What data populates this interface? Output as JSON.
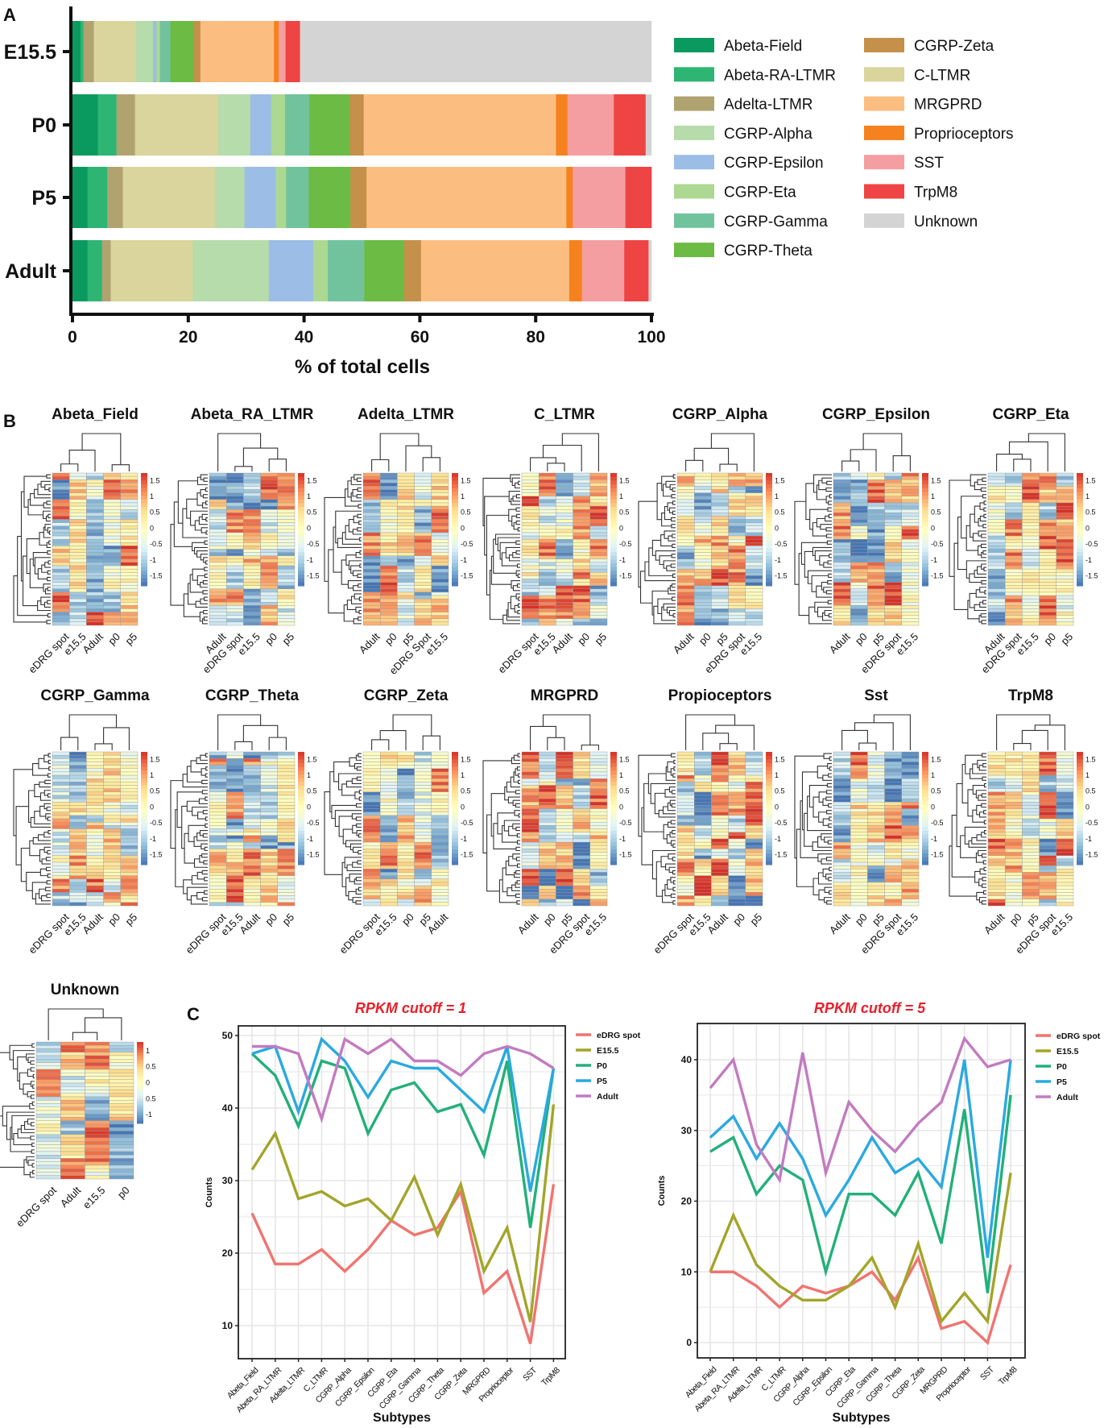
{
  "panel_labels": {
    "a": "A",
    "b": "B",
    "c": "C"
  },
  "panel_a": {
    "chart_data": {
      "type": "bar",
      "orientation": "horizontal-stacked",
      "xlabel": "% of total cells",
      "xlim": [
        0,
        100
      ],
      "xticks": [
        "0",
        "20",
        "40",
        "60",
        "80",
        "100"
      ],
      "categories": [
        "E15.5",
        "P0",
        "P5",
        "Adult"
      ],
      "stack_order": [
        "Abeta-Field",
        "Abeta-RA-LTMR",
        "Adelta-LTMR",
        "C-LTMR",
        "CGRP-Alpha",
        "CGRP-Epsilon",
        "CGRP-Eta",
        "CGRP-Gamma",
        "CGRP-Theta",
        "CGRP-Zeta",
        "MRGPRD",
        "Proprioceptors",
        "SST",
        "TrpM8",
        "Unknown"
      ],
      "series": [
        {
          "name": "Abeta-Field",
          "color": "#0a9a60",
          "values": [
            1.4,
            4.4,
            2.6,
            2.6
          ]
        },
        {
          "name": "Abeta-RA-LTMR",
          "color": "#2eb574",
          "values": [
            0.5,
            3.2,
            3.4,
            2.5
          ]
        },
        {
          "name": "Adelta-LTMR",
          "color": "#b0a370",
          "values": [
            1.8,
            3.2,
            2.7,
            1.5
          ]
        },
        {
          "name": "CGRP-Alpha",
          "color": "#b5dcaa",
          "values": [
            2.9,
            5.5,
            5.1,
            13.1
          ]
        },
        {
          "name": "CGRP-Epsilon",
          "color": "#9bbde6",
          "values": [
            0.6,
            3.6,
            5.4,
            7.7
          ]
        },
        {
          "name": "CGRP-Eta",
          "color": "#acd891",
          "values": [
            0.6,
            2.4,
            1.8,
            2.5
          ]
        },
        {
          "name": "CGRP-Gamma",
          "color": "#71c39e",
          "values": [
            1.8,
            4.2,
            3.9,
            6.3
          ]
        },
        {
          "name": "CGRP-Theta",
          "color": "#6cbb44",
          "values": [
            4.1,
            7.0,
            7.2,
            6.9
          ]
        },
        {
          "name": "CGRP-Zeta",
          "color": "#c4904a",
          "values": [
            1.1,
            2.4,
            2.8,
            2.9
          ]
        },
        {
          "name": "C-LTMR",
          "color": "#d9d59c",
          "values": [
            7.3,
            14.4,
            15.9,
            14.2
          ]
        },
        {
          "name": "MRGPRD",
          "color": "#fbbe80",
          "values": [
            12.7,
            33.2,
            34.5,
            25.6
          ]
        },
        {
          "name": "Proprioceptors",
          "color": "#f5821f",
          "values": [
            0.8,
            2.0,
            1.1,
            2.2
          ]
        },
        {
          "name": "SST",
          "color": "#f49ea1",
          "values": [
            1.2,
            8.0,
            9.1,
            7.3
          ]
        },
        {
          "name": "TrpM8",
          "color": "#ef4444",
          "values": [
            2.5,
            5.5,
            4.5,
            4.2
          ]
        },
        {
          "name": "Unknown",
          "color": "#d4d4d4",
          "values": [
            60.7,
            1.0,
            0.0,
            0.5
          ]
        }
      ],
      "legend_position": "right"
    }
  },
  "panel_b": {
    "chart_data": {
      "type": "heatmap",
      "scale_ticks": [
        "1.5",
        "1",
        "0.5",
        "0",
        "-0.5",
        "-1",
        "-1.5"
      ],
      "scale_range": [
        -1.7,
        1.7
      ],
      "palette": [
        "#4575b4",
        "#91bfdb",
        "#e0f3f8",
        "#ffffbf",
        "#fee090",
        "#fc8d59",
        "#d73027"
      ],
      "heatmaps": [
        {
          "title": "Abeta_Field",
          "columns": [
            "eDRG spot",
            "e15.5",
            "Adult",
            "p0",
            "p5"
          ]
        },
        {
          "title": "Abeta_RA_LTMR",
          "columns": [
            "Adult",
            "eDRG spot",
            "e15.5",
            "p0",
            "p5"
          ]
        },
        {
          "title": "Adelta_LTMR",
          "columns": [
            "Adult",
            "p0",
            "p5",
            "eDRG Spot",
            "e15.5"
          ]
        },
        {
          "title": "C_LTMR",
          "columns": [
            "eDRG spot",
            "e15.5",
            "Adult",
            "p0",
            "p5"
          ]
        },
        {
          "title": "CGRP_Alpha",
          "columns": [
            "Adult",
            "p0",
            "p5",
            "eDRG spot",
            "e15.5"
          ]
        },
        {
          "title": "CGRP_Epsilon",
          "columns": [
            "Adult",
            "p0",
            "p5",
            "eDRG spot",
            "e15.5"
          ]
        },
        {
          "title": "CGRP_Eta",
          "columns": [
            "Adult",
            "eDRG spot",
            "e15.5",
            "p0",
            "p5"
          ]
        },
        {
          "title": "CGRP_Gamma",
          "columns": [
            "eDRG spot",
            "e15.5",
            "Adult",
            "p0",
            "p5"
          ]
        },
        {
          "title": "CGRP_Theta",
          "columns": [
            "eDRG spot",
            "e15.5",
            "Adult",
            "p0",
            "p5"
          ]
        },
        {
          "title": "CGRP_Zeta",
          "columns": [
            "eDRG spot",
            "e15.5",
            "p0",
            "p5",
            "Adult"
          ]
        },
        {
          "title": "MRGPRD",
          "columns": [
            "Adult",
            "p0",
            "p5",
            "eDRG spot",
            "e15.5"
          ]
        },
        {
          "title": "Propioceptors",
          "columns": [
            "eDRG spot",
            "e15.5",
            "Adult",
            "p0",
            "p5"
          ]
        },
        {
          "title": "Sst",
          "columns": [
            "Adult",
            "p0",
            "p5",
            "eDRG spot",
            "e15.5"
          ]
        },
        {
          "title": "TrpM8",
          "columns": [
            "Adult",
            "p0",
            "p5",
            "eDRG spot",
            "e15.5"
          ]
        },
        {
          "title": "Unknown",
          "columns": [
            "eDRG spot",
            "Adult",
            "e15.5",
            "p0"
          ],
          "scale_ticks": [
            "1",
            "0.5",
            "0",
            "0.5",
            "-1"
          ]
        }
      ]
    }
  },
  "panel_c": {
    "chart_data": [
      {
        "type": "line",
        "title": "RPKM cutoff = 1",
        "xlabel": "Subtypes",
        "ylabel": "Counts",
        "ylim": [
          5.5,
          51.5
        ],
        "yticks": [
          10,
          20,
          30,
          40,
          50
        ],
        "grid": true,
        "legend_position": "right",
        "categories": [
          "Abeta_Field",
          "Abeta_RA_LTMR",
          "Adelta_LTMR",
          "C_LTMR",
          "CGRP_Alpha",
          "CGRP_Epsilon",
          "CGRP_Eta",
          "CGRP_Gamma",
          "CGRP_Theta",
          "CGRP_Zeta",
          "MRGPRD",
          "Proprioceptor",
          "SST",
          "TrpM8"
        ],
        "series": [
          {
            "name": "eDRG spot",
            "color": "#f07470",
            "values": [
              25.5,
              18.5,
              18.5,
              20.5,
              17.5,
              20.5,
              24.5,
              22.5,
              23.5,
              28.5,
              14.5,
              17.5,
              7.5,
              29.5
            ]
          },
          {
            "name": "E15.5",
            "color": "#a3a52a",
            "values": [
              31.5,
              36.5,
              27.5,
              28.5,
              26.5,
              27.5,
              24.5,
              30.5,
              22.5,
              29.5,
              17.5,
              23.5,
              10.5,
              40.5
            ]
          },
          {
            "name": "P0",
            "color": "#22b07a",
            "values": [
              47.5,
              44.5,
              37.5,
              46.5,
              45.5,
              36.5,
              42.5,
              43.5,
              39.5,
              40.5,
              33.5,
              46.5,
              23.5,
              45.5
            ]
          },
          {
            "name": "P5",
            "color": "#2aa9e0",
            "values": [
              47.5,
              48.5,
              39.5,
              49.5,
              46.5,
              41.5,
              46.5,
              45.5,
              45.5,
              42.5,
              39.5,
              48.5,
              28.5,
              45.5
            ]
          },
          {
            "name": "Adult",
            "color": "#c27bc0",
            "values": [
              48.5,
              48.5,
              47.5,
              38.5,
              49.5,
              47.5,
              49.5,
              46.5,
              46.5,
              44.5,
              47.5,
              48.5,
              47.5,
              45.5
            ]
          }
        ]
      },
      {
        "type": "line",
        "title": "RPKM cutoff = 5",
        "xlabel": "Subtypes",
        "ylabel": "Counts",
        "ylim": [
          -2,
          45
        ],
        "yticks": [
          0,
          10,
          20,
          30,
          40
        ],
        "grid": true,
        "legend_position": "right",
        "categories": [
          "Abeta_Field",
          "Abeta_RA_LTMR",
          "Adelta_LTMR",
          "C_LTMR",
          "CGRP_Alpha",
          "CGRP_Epsilon",
          "CGRP_Eta",
          "CGRP_Gamma",
          "CGRP_Theta",
          "CGRP_Zeta",
          "MRGPRD",
          "Proprioceptor",
          "SST",
          "TrpM8"
        ],
        "series": [
          {
            "name": "eDRG spot",
            "color": "#f07470",
            "values": [
              10,
              10,
              8,
              5,
              8,
              7,
              8,
              10,
              6,
              12,
              2,
              3,
              0,
              11
            ]
          },
          {
            "name": "E15.5",
            "color": "#a3a52a",
            "values": [
              10,
              18,
              11,
              8,
              6,
              6,
              8,
              12,
              5,
              14,
              3,
              7,
              3,
              24
            ]
          },
          {
            "name": "P0",
            "color": "#22b07a",
            "values": [
              27,
              29,
              21,
              25,
              23,
              10,
              21,
              21,
              18,
              24,
              14,
              33,
              7,
              35
            ]
          },
          {
            "name": "P5",
            "color": "#2aa9e0",
            "values": [
              29,
              32,
              26,
              31,
              26,
              18,
              23,
              29,
              24,
              26,
              22,
              40,
              12,
              40
            ]
          },
          {
            "name": "Adult",
            "color": "#c27bc0",
            "values": [
              36,
              40,
              28,
              23,
              41,
              24,
              34,
              30,
              27,
              31,
              34,
              43,
              39,
              40
            ]
          }
        ]
      }
    ]
  }
}
